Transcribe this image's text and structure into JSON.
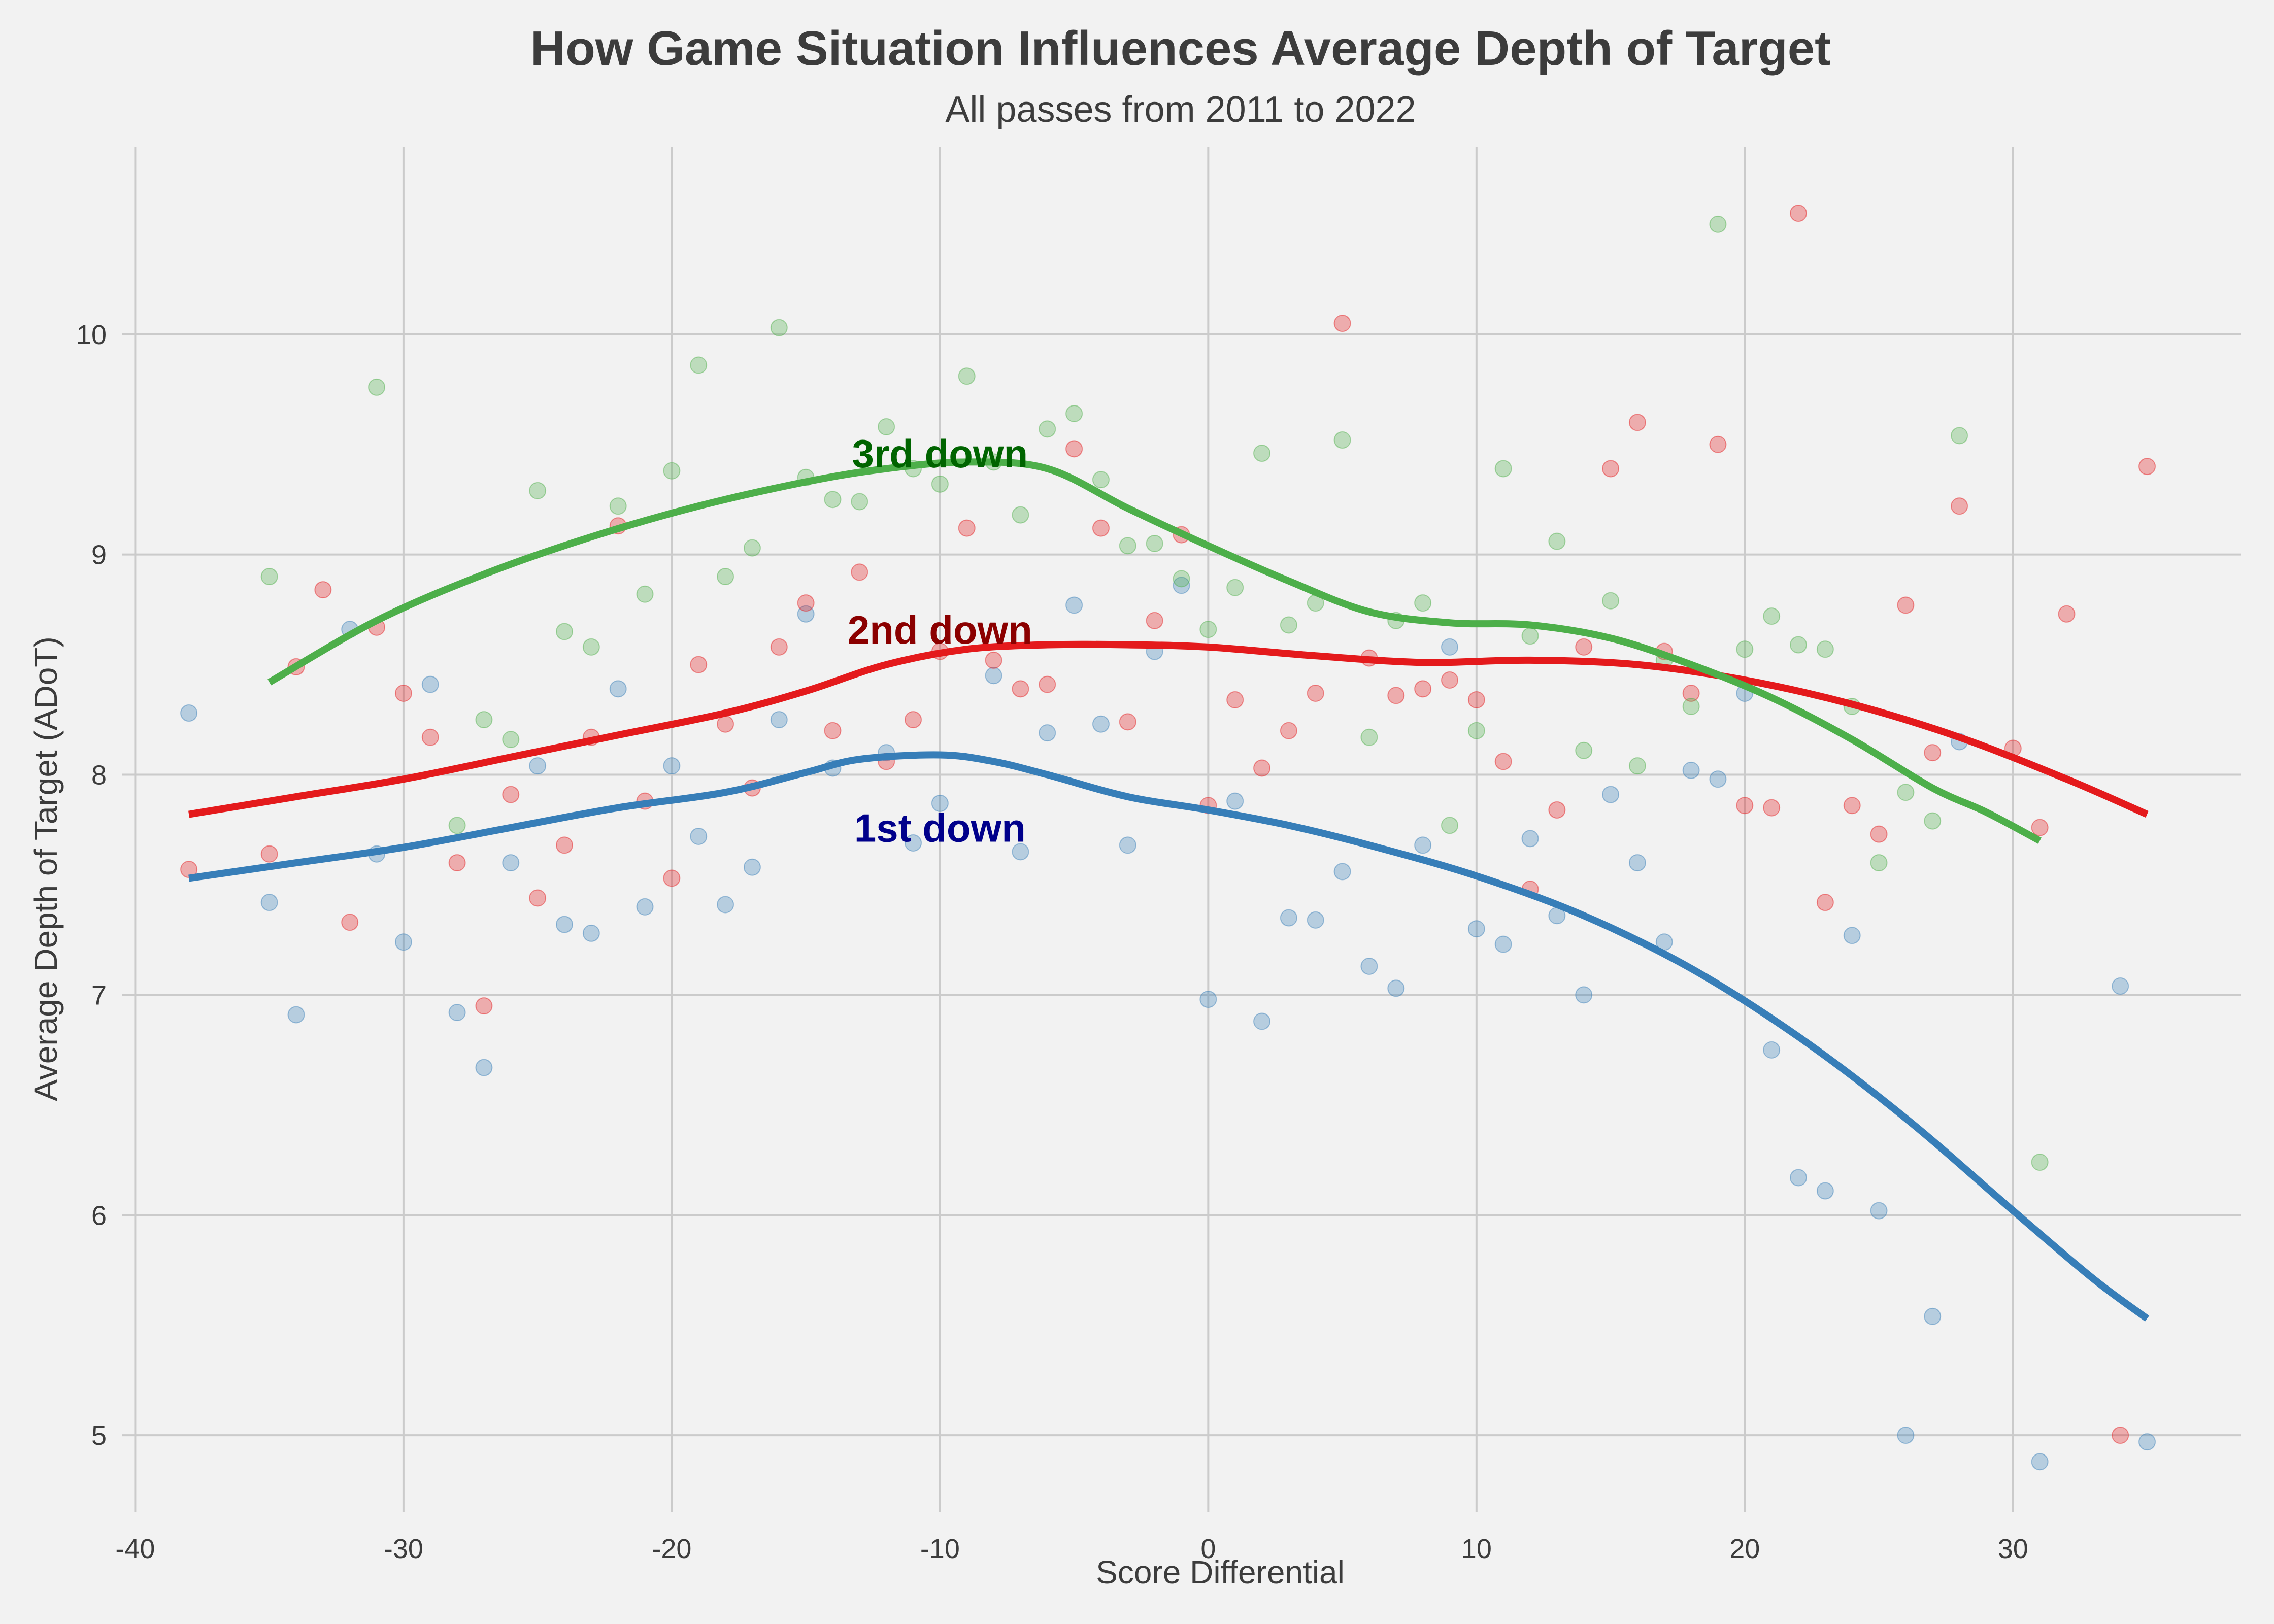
{
  "chart_data": {
    "type": "scatter",
    "title": "How Game Situation Influences Average Depth of Target",
    "subtitle": "All passes from 2011 to 2022",
    "xlabel": "Score Differential",
    "ylabel": "Average Depth of Target (ADoT)",
    "xlim": [
      -40.5,
      38.5
    ],
    "ylim": [
      4.65,
      10.85
    ],
    "xticks": [
      -40,
      -30,
      -20,
      -10,
      0,
      10,
      20,
      30
    ],
    "yticks": [
      5,
      6,
      7,
      8,
      9,
      10
    ],
    "grid": true,
    "series": [
      {
        "name": "1st down",
        "color": "#377eb8",
        "label_color": "#00008b",
        "label_at": [
          -10,
          7.76
        ],
        "points": [
          [
            -38,
            8.28
          ],
          [
            -35,
            7.42
          ],
          [
            -34,
            6.91
          ],
          [
            -32,
            8.66
          ],
          [
            -31,
            7.64
          ],
          [
            -30,
            7.24
          ],
          [
            -29,
            8.41
          ],
          [
            -28,
            6.92
          ],
          [
            -27,
            6.67
          ],
          [
            -26,
            7.6
          ],
          [
            -25,
            8.04
          ],
          [
            -24,
            7.32
          ],
          [
            -23,
            7.28
          ],
          [
            -22,
            8.39
          ],
          [
            -21,
            7.4
          ],
          [
            -20,
            8.04
          ],
          [
            -19,
            7.72
          ],
          [
            -18,
            7.41
          ],
          [
            -17,
            7.58
          ],
          [
            -16,
            8.25
          ],
          [
            -15,
            8.73
          ],
          [
            -14,
            8.03
          ],
          [
            -12,
            8.1
          ],
          [
            -11,
            7.69
          ],
          [
            -10,
            7.87
          ],
          [
            -8,
            8.45
          ],
          [
            -7,
            7.65
          ],
          [
            -6,
            8.19
          ],
          [
            -5,
            8.77
          ],
          [
            -4,
            8.23
          ],
          [
            -3,
            7.68
          ],
          [
            -2,
            8.56
          ],
          [
            -1,
            8.86
          ],
          [
            0,
            6.98
          ],
          [
            1,
            7.88
          ],
          [
            2,
            6.88
          ],
          [
            3,
            7.35
          ],
          [
            4,
            7.34
          ],
          [
            5,
            7.56
          ],
          [
            6,
            7.13
          ],
          [
            7,
            7.03
          ],
          [
            8,
            7.68
          ],
          [
            9,
            8.58
          ],
          [
            10,
            7.3
          ],
          [
            11,
            7.23
          ],
          [
            12,
            7.71
          ],
          [
            13,
            7.36
          ],
          [
            14,
            7.0
          ],
          [
            15,
            7.91
          ],
          [
            16,
            7.6
          ],
          [
            17,
            7.24
          ],
          [
            18,
            8.02
          ],
          [
            19,
            7.98
          ],
          [
            20,
            8.37
          ],
          [
            21,
            6.75
          ],
          [
            22,
            6.17
          ],
          [
            23,
            6.11
          ],
          [
            24,
            7.27
          ],
          [
            25,
            6.02
          ],
          [
            26,
            5.0
          ],
          [
            27,
            5.54
          ],
          [
            28,
            8.15
          ],
          [
            31,
            4.88
          ],
          [
            34,
            7.04
          ],
          [
            35,
            4.97
          ]
        ],
        "trend": [
          [
            -38,
            7.53
          ],
          [
            -34,
            7.6
          ],
          [
            -30,
            7.67
          ],
          [
            -26,
            7.76
          ],
          [
            -22,
            7.85
          ],
          [
            -18,
            7.92
          ],
          [
            -15,
            8.01
          ],
          [
            -13,
            8.07
          ],
          [
            -10,
            8.09
          ],
          [
            -8,
            8.06
          ],
          [
            -6,
            8.0
          ],
          [
            -3,
            7.9
          ],
          [
            0,
            7.84
          ],
          [
            3,
            7.77
          ],
          [
            6,
            7.68
          ],
          [
            10,
            7.54
          ],
          [
            14,
            7.36
          ],
          [
            18,
            7.12
          ],
          [
            22,
            6.81
          ],
          [
            26,
            6.44
          ],
          [
            30,
            6.02
          ],
          [
            33,
            5.71
          ],
          [
            35,
            5.53
          ]
        ]
      },
      {
        "name": "2nd down",
        "color": "#e41a1c",
        "label_color": "#8b0000",
        "label_at": [
          -10,
          8.66
        ],
        "points": [
          [
            -38,
            7.57
          ],
          [
            -35,
            7.64
          ],
          [
            -34,
            8.49
          ],
          [
            -33,
            8.84
          ],
          [
            -32,
            7.33
          ],
          [
            -31,
            8.67
          ],
          [
            -30,
            8.37
          ],
          [
            -29,
            8.17
          ],
          [
            -28,
            7.6
          ],
          [
            -27,
            6.95
          ],
          [
            -26,
            7.91
          ],
          [
            -25,
            7.44
          ],
          [
            -24,
            7.68
          ],
          [
            -23,
            8.17
          ],
          [
            -22,
            9.13
          ],
          [
            -21,
            7.88
          ],
          [
            -20,
            7.53
          ],
          [
            -19,
            8.5
          ],
          [
            -18,
            8.23
          ],
          [
            -17,
            7.94
          ],
          [
            -16,
            8.58
          ],
          [
            -15,
            8.78
          ],
          [
            -14,
            8.2
          ],
          [
            -13,
            8.92
          ],
          [
            -12,
            8.06
          ],
          [
            -11,
            8.25
          ],
          [
            -10,
            8.56
          ],
          [
            -9,
            9.12
          ],
          [
            -8,
            8.52
          ],
          [
            -7,
            8.39
          ],
          [
            -6,
            8.41
          ],
          [
            -5,
            9.48
          ],
          [
            -4,
            9.12
          ],
          [
            -3,
            8.24
          ],
          [
            -2,
            8.7
          ],
          [
            -1,
            9.09
          ],
          [
            0,
            7.86
          ],
          [
            1,
            8.34
          ],
          [
            2,
            8.03
          ],
          [
            3,
            8.2
          ],
          [
            4,
            8.37
          ],
          [
            5,
            10.05
          ],
          [
            6,
            8.53
          ],
          [
            7,
            8.36
          ],
          [
            8,
            8.39
          ],
          [
            9,
            8.43
          ],
          [
            10,
            8.34
          ],
          [
            11,
            8.06
          ],
          [
            12,
            7.48
          ],
          [
            13,
            7.84
          ],
          [
            14,
            8.58
          ],
          [
            15,
            9.39
          ],
          [
            16,
            9.6
          ],
          [
            17,
            8.56
          ],
          [
            18,
            8.37
          ],
          [
            19,
            9.5
          ],
          [
            20,
            7.86
          ],
          [
            21,
            7.85
          ],
          [
            22,
            10.55
          ],
          [
            23,
            7.42
          ],
          [
            24,
            7.86
          ],
          [
            25,
            7.73
          ],
          [
            26,
            8.77
          ],
          [
            27,
            8.1
          ],
          [
            28,
            9.22
          ],
          [
            30,
            8.12
          ],
          [
            31,
            7.76
          ],
          [
            32,
            8.73
          ],
          [
            34,
            5.0
          ],
          [
            35,
            9.4
          ]
        ],
        "trend": [
          [
            -38,
            7.82
          ],
          [
            -34,
            7.9
          ],
          [
            -30,
            7.98
          ],
          [
            -26,
            8.08
          ],
          [
            -22,
            8.18
          ],
          [
            -18,
            8.28
          ],
          [
            -15,
            8.38
          ],
          [
            -12,
            8.5
          ],
          [
            -9,
            8.57
          ],
          [
            -6,
            8.59
          ],
          [
            -3,
            8.59
          ],
          [
            0,
            8.58
          ],
          [
            4,
            8.54
          ],
          [
            8,
            8.51
          ],
          [
            12,
            8.52
          ],
          [
            16,
            8.5
          ],
          [
            20,
            8.43
          ],
          [
            24,
            8.32
          ],
          [
            28,
            8.17
          ],
          [
            32,
            7.98
          ],
          [
            35,
            7.82
          ]
        ]
      },
      {
        "name": "3rd down",
        "color": "#4daf4a",
        "label_color": "#006400",
        "label_at": [
          -10,
          9.46
        ],
        "points": [
          [
            -35,
            8.9
          ],
          [
            -31,
            9.76
          ],
          [
            -28,
            7.77
          ],
          [
            -27,
            8.25
          ],
          [
            -26,
            8.16
          ],
          [
            -25,
            9.29
          ],
          [
            -24,
            8.65
          ],
          [
            -23,
            8.58
          ],
          [
            -22,
            9.22
          ],
          [
            -21,
            8.82
          ],
          [
            -20,
            9.38
          ],
          [
            -19,
            9.86
          ],
          [
            -18,
            8.9
          ],
          [
            -17,
            9.03
          ],
          [
            -16,
            10.03
          ],
          [
            -15,
            9.35
          ],
          [
            -14,
            9.25
          ],
          [
            -13,
            9.24
          ],
          [
            -12,
            9.58
          ],
          [
            -11,
            9.39
          ],
          [
            -10,
            9.32
          ],
          [
            -9,
            9.81
          ],
          [
            -8,
            9.42
          ],
          [
            -7,
            9.18
          ],
          [
            -6,
            9.57
          ],
          [
            -5,
            9.64
          ],
          [
            -4,
            9.34
          ],
          [
            -3,
            9.04
          ],
          [
            -2,
            9.05
          ],
          [
            -1,
            8.89
          ],
          [
            0,
            8.66
          ],
          [
            1,
            8.85
          ],
          [
            2,
            9.46
          ],
          [
            3,
            8.68
          ],
          [
            4,
            8.78
          ],
          [
            5,
            9.52
          ],
          [
            6,
            8.17
          ],
          [
            7,
            8.7
          ],
          [
            8,
            8.78
          ],
          [
            9,
            7.77
          ],
          [
            10,
            8.2
          ],
          [
            11,
            9.39
          ],
          [
            12,
            8.63
          ],
          [
            13,
            9.06
          ],
          [
            14,
            8.11
          ],
          [
            15,
            8.79
          ],
          [
            16,
            8.04
          ],
          [
            17,
            8.52
          ],
          [
            18,
            8.31
          ],
          [
            19,
            10.5
          ],
          [
            20,
            8.57
          ],
          [
            21,
            8.72
          ],
          [
            22,
            8.59
          ],
          [
            23,
            8.57
          ],
          [
            24,
            8.31
          ],
          [
            25,
            7.6
          ],
          [
            26,
            7.92
          ],
          [
            27,
            7.79
          ],
          [
            28,
            9.54
          ],
          [
            31,
            6.24
          ]
        ],
        "trend": [
          [
            -35,
            8.42
          ],
          [
            -31,
            8.7
          ],
          [
            -27,
            8.91
          ],
          [
            -23,
            9.08
          ],
          [
            -19,
            9.22
          ],
          [
            -15,
            9.33
          ],
          [
            -12,
            9.39
          ],
          [
            -9,
            9.42
          ],
          [
            -6,
            9.39
          ],
          [
            -3,
            9.21
          ],
          [
            0,
            9.04
          ],
          [
            3,
            8.88
          ],
          [
            6,
            8.74
          ],
          [
            9,
            8.69
          ],
          [
            12,
            8.68
          ],
          [
            15,
            8.62
          ],
          [
            18,
            8.5
          ],
          [
            21,
            8.35
          ],
          [
            24,
            8.16
          ],
          [
            27,
            7.94
          ],
          [
            29,
            7.83
          ],
          [
            31,
            7.7
          ]
        ]
      }
    ]
  }
}
